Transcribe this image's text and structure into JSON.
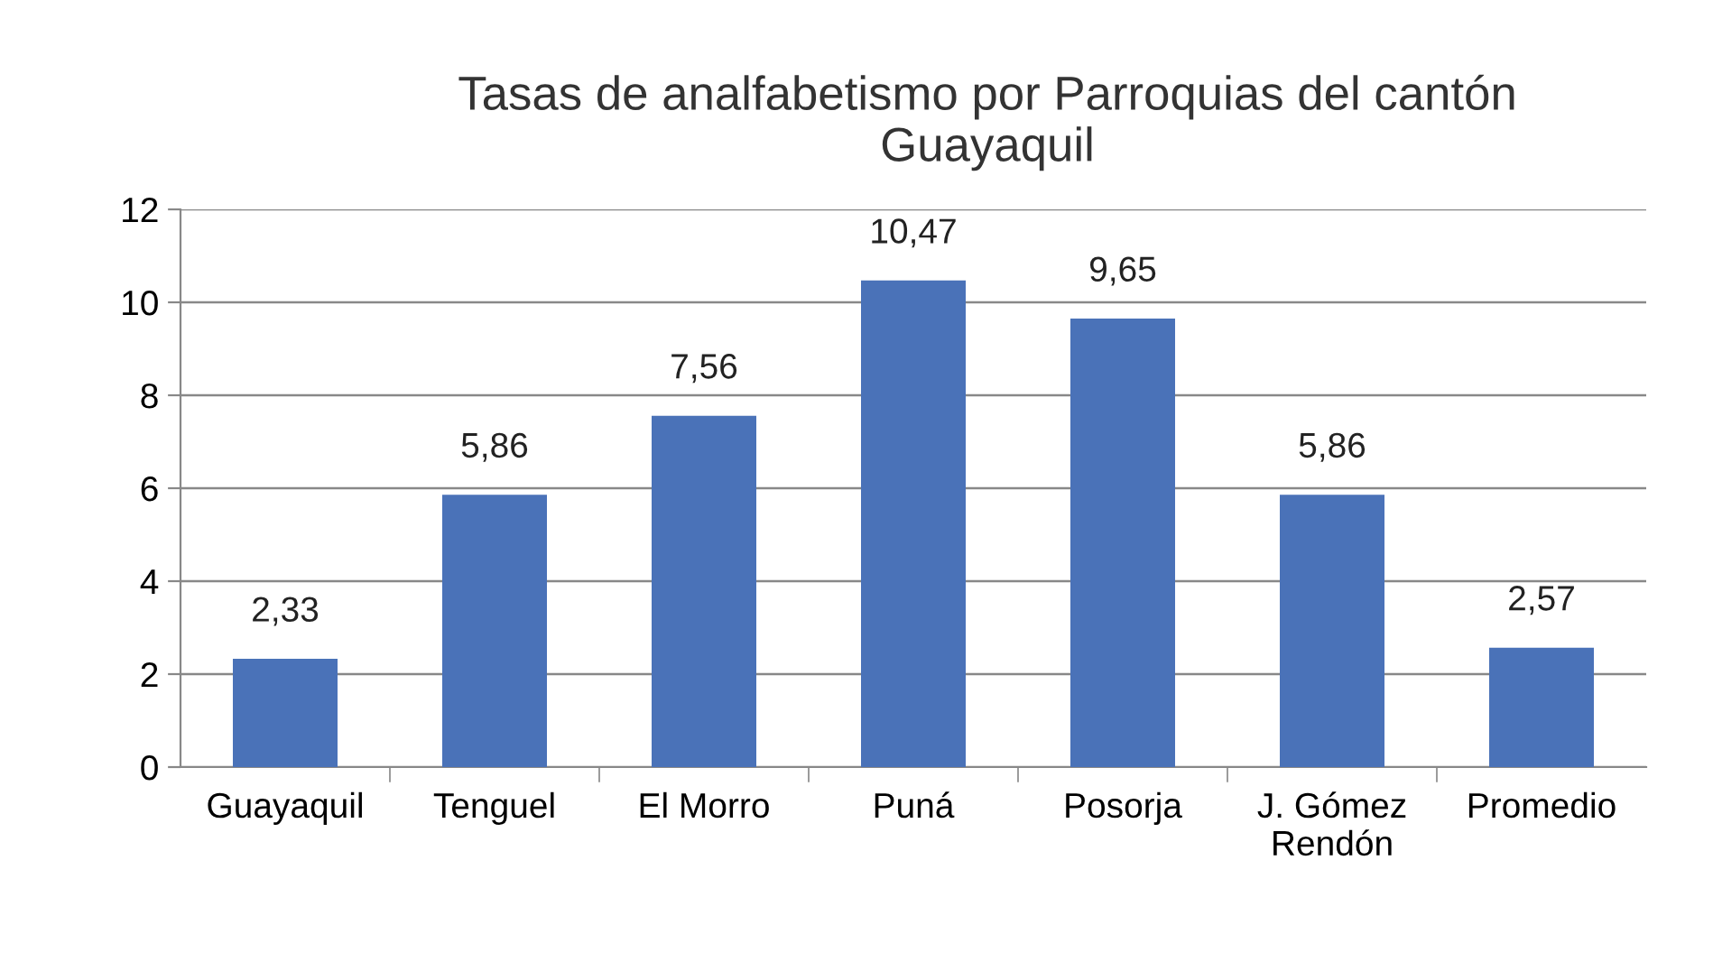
{
  "chart_data": {
    "type": "bar",
    "title": "Tasas de analfabetismo por Parroquias del cantón\nGuayaquil",
    "categories": [
      "Guayaquil",
      "Tenguel",
      "El Morro",
      "Puná",
      "Posorja",
      "J. Gómez\nRendón",
      "Promedio"
    ],
    "values": [
      2.33,
      5.86,
      7.56,
      10.47,
      9.65,
      5.86,
      2.57
    ],
    "value_labels": [
      "2,33",
      "5,86",
      "7,56",
      "10,47",
      "9,65",
      "5,86",
      "2,57"
    ],
    "color": "#4a72b8",
    "ylim": [
      0,
      12
    ],
    "yticks": [
      0,
      2,
      4,
      6,
      8,
      10,
      12
    ],
    "grid": "y"
  }
}
